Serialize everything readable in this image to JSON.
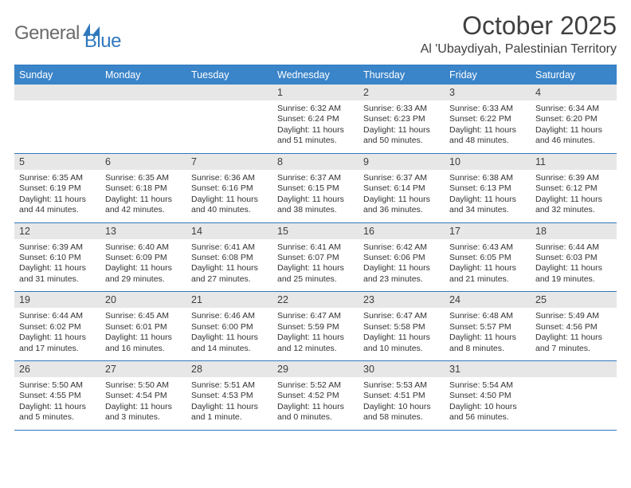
{
  "logo": {
    "text1": "General",
    "text2": "Blue"
  },
  "title": "October 2025",
  "location": "Al 'Ubaydiyah, Palestinian Territory",
  "colors": {
    "header_bg": "#3a84c9",
    "accent_line": "#2f78bd",
    "daynum_bg": "#e7e7e7",
    "text": "#333333",
    "title_text": "#404040",
    "logo_gray": "#6b6b6b",
    "logo_blue": "#2f78bd",
    "page_bg": "#ffffff"
  },
  "weekdays": [
    "Sunday",
    "Monday",
    "Tuesday",
    "Wednesday",
    "Thursday",
    "Friday",
    "Saturday"
  ],
  "weeks": [
    [
      null,
      null,
      null,
      {
        "n": "1",
        "sr": "Sunrise: 6:32 AM",
        "ss": "Sunset: 6:24 PM",
        "dl": "Daylight: 11 hours and 51 minutes."
      },
      {
        "n": "2",
        "sr": "Sunrise: 6:33 AM",
        "ss": "Sunset: 6:23 PM",
        "dl": "Daylight: 11 hours and 50 minutes."
      },
      {
        "n": "3",
        "sr": "Sunrise: 6:33 AM",
        "ss": "Sunset: 6:22 PM",
        "dl": "Daylight: 11 hours and 48 minutes."
      },
      {
        "n": "4",
        "sr": "Sunrise: 6:34 AM",
        "ss": "Sunset: 6:20 PM",
        "dl": "Daylight: 11 hours and 46 minutes."
      }
    ],
    [
      {
        "n": "5",
        "sr": "Sunrise: 6:35 AM",
        "ss": "Sunset: 6:19 PM",
        "dl": "Daylight: 11 hours and 44 minutes."
      },
      {
        "n": "6",
        "sr": "Sunrise: 6:35 AM",
        "ss": "Sunset: 6:18 PM",
        "dl": "Daylight: 11 hours and 42 minutes."
      },
      {
        "n": "7",
        "sr": "Sunrise: 6:36 AM",
        "ss": "Sunset: 6:16 PM",
        "dl": "Daylight: 11 hours and 40 minutes."
      },
      {
        "n": "8",
        "sr": "Sunrise: 6:37 AM",
        "ss": "Sunset: 6:15 PM",
        "dl": "Daylight: 11 hours and 38 minutes."
      },
      {
        "n": "9",
        "sr": "Sunrise: 6:37 AM",
        "ss": "Sunset: 6:14 PM",
        "dl": "Daylight: 11 hours and 36 minutes."
      },
      {
        "n": "10",
        "sr": "Sunrise: 6:38 AM",
        "ss": "Sunset: 6:13 PM",
        "dl": "Daylight: 11 hours and 34 minutes."
      },
      {
        "n": "11",
        "sr": "Sunrise: 6:39 AM",
        "ss": "Sunset: 6:12 PM",
        "dl": "Daylight: 11 hours and 32 minutes."
      }
    ],
    [
      {
        "n": "12",
        "sr": "Sunrise: 6:39 AM",
        "ss": "Sunset: 6:10 PM",
        "dl": "Daylight: 11 hours and 31 minutes."
      },
      {
        "n": "13",
        "sr": "Sunrise: 6:40 AM",
        "ss": "Sunset: 6:09 PM",
        "dl": "Daylight: 11 hours and 29 minutes."
      },
      {
        "n": "14",
        "sr": "Sunrise: 6:41 AM",
        "ss": "Sunset: 6:08 PM",
        "dl": "Daylight: 11 hours and 27 minutes."
      },
      {
        "n": "15",
        "sr": "Sunrise: 6:41 AM",
        "ss": "Sunset: 6:07 PM",
        "dl": "Daylight: 11 hours and 25 minutes."
      },
      {
        "n": "16",
        "sr": "Sunrise: 6:42 AM",
        "ss": "Sunset: 6:06 PM",
        "dl": "Daylight: 11 hours and 23 minutes."
      },
      {
        "n": "17",
        "sr": "Sunrise: 6:43 AM",
        "ss": "Sunset: 6:05 PM",
        "dl": "Daylight: 11 hours and 21 minutes."
      },
      {
        "n": "18",
        "sr": "Sunrise: 6:44 AM",
        "ss": "Sunset: 6:03 PM",
        "dl": "Daylight: 11 hours and 19 minutes."
      }
    ],
    [
      {
        "n": "19",
        "sr": "Sunrise: 6:44 AM",
        "ss": "Sunset: 6:02 PM",
        "dl": "Daylight: 11 hours and 17 minutes."
      },
      {
        "n": "20",
        "sr": "Sunrise: 6:45 AM",
        "ss": "Sunset: 6:01 PM",
        "dl": "Daylight: 11 hours and 16 minutes."
      },
      {
        "n": "21",
        "sr": "Sunrise: 6:46 AM",
        "ss": "Sunset: 6:00 PM",
        "dl": "Daylight: 11 hours and 14 minutes."
      },
      {
        "n": "22",
        "sr": "Sunrise: 6:47 AM",
        "ss": "Sunset: 5:59 PM",
        "dl": "Daylight: 11 hours and 12 minutes."
      },
      {
        "n": "23",
        "sr": "Sunrise: 6:47 AM",
        "ss": "Sunset: 5:58 PM",
        "dl": "Daylight: 11 hours and 10 minutes."
      },
      {
        "n": "24",
        "sr": "Sunrise: 6:48 AM",
        "ss": "Sunset: 5:57 PM",
        "dl": "Daylight: 11 hours and 8 minutes."
      },
      {
        "n": "25",
        "sr": "Sunrise: 5:49 AM",
        "ss": "Sunset: 4:56 PM",
        "dl": "Daylight: 11 hours and 7 minutes."
      }
    ],
    [
      {
        "n": "26",
        "sr": "Sunrise: 5:50 AM",
        "ss": "Sunset: 4:55 PM",
        "dl": "Daylight: 11 hours and 5 minutes."
      },
      {
        "n": "27",
        "sr": "Sunrise: 5:50 AM",
        "ss": "Sunset: 4:54 PM",
        "dl": "Daylight: 11 hours and 3 minutes."
      },
      {
        "n": "28",
        "sr": "Sunrise: 5:51 AM",
        "ss": "Sunset: 4:53 PM",
        "dl": "Daylight: 11 hours and 1 minute."
      },
      {
        "n": "29",
        "sr": "Sunrise: 5:52 AM",
        "ss": "Sunset: 4:52 PM",
        "dl": "Daylight: 11 hours and 0 minutes."
      },
      {
        "n": "30",
        "sr": "Sunrise: 5:53 AM",
        "ss": "Sunset: 4:51 PM",
        "dl": "Daylight: 10 hours and 58 minutes."
      },
      {
        "n": "31",
        "sr": "Sunrise: 5:54 AM",
        "ss": "Sunset: 4:50 PM",
        "dl": "Daylight: 10 hours and 56 minutes."
      },
      null
    ]
  ]
}
